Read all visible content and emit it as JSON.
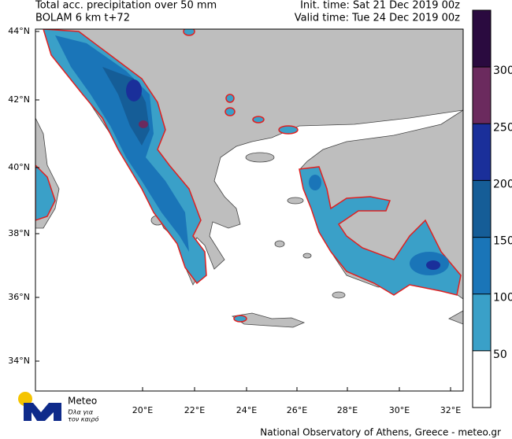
{
  "header": {
    "title": "Total acc. precipitation over 50 mm",
    "model": "BOLAM 6 km t+72",
    "init_time": "Init. time: Sat 21 Dec 2019 00z",
    "valid_time": "Valid time: Tue 24 Dec 2019 00z"
  },
  "map": {
    "lat_labels": [
      "44°N",
      "42°N",
      "40°N",
      "38°N",
      "36°N",
      "34°N"
    ],
    "lon_labels": [
      "20°E",
      "22°E",
      "24°E",
      "26°E",
      "28°E",
      "30°E",
      "32°E"
    ]
  },
  "colorbar": {
    "levels": [
      50,
      100,
      150,
      200,
      250,
      300
    ],
    "colors": [
      "#ffffff",
      "#3aa0c8",
      "#1a75b8",
      "#155d97",
      "#1a2f9a",
      "#6b2a5e",
      "#2a0a3f"
    ]
  },
  "logo": {
    "name": "Meteo",
    "slogan_1": "Όλα για",
    "slogan_2": "τον καιρό"
  },
  "footer": "National Observatory of Athens, Greece - meteo.gr"
}
